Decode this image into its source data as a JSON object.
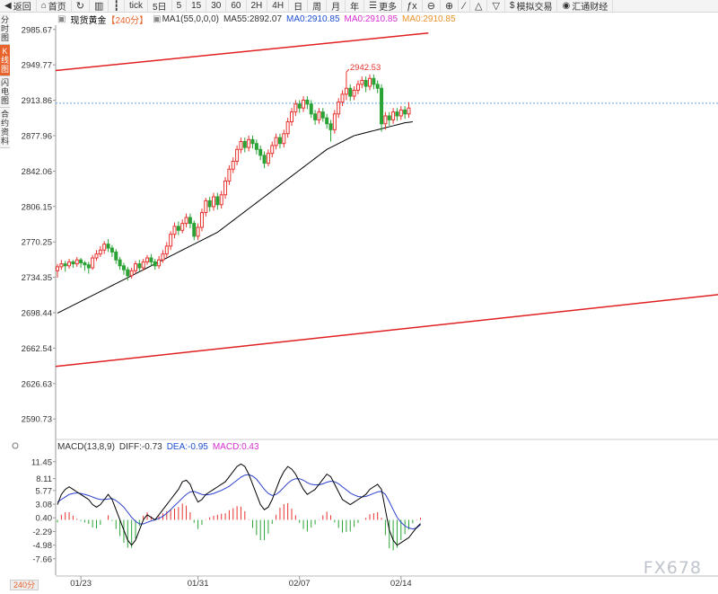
{
  "toolbar": {
    "items": [
      {
        "label": "返回",
        "icon": "back-arrow-icon"
      },
      {
        "label": "首页",
        "icon": "home-icon"
      },
      {
        "label": "",
        "icon": "refresh-icon"
      },
      {
        "label": "",
        "icon": "bar-chart-icon"
      },
      {
        "label": "",
        "icon": "candlestick-icon"
      },
      {
        "label": "tick",
        "icon": ""
      },
      {
        "label": "5日",
        "icon": ""
      },
      {
        "label": "5",
        "icon": ""
      },
      {
        "label": "15",
        "icon": ""
      },
      {
        "label": "30",
        "icon": ""
      },
      {
        "label": "60",
        "icon": ""
      },
      {
        "label": "2H",
        "icon": ""
      },
      {
        "label": "4H",
        "icon": ""
      },
      {
        "label": "日",
        "icon": ""
      },
      {
        "label": "周",
        "icon": ""
      },
      {
        "label": "月",
        "icon": ""
      },
      {
        "label": "年",
        "icon": ""
      },
      {
        "label": "更多",
        "icon": "menu-icon"
      },
      {
        "label": "",
        "icon": "fx-icon"
      },
      {
        "label": "",
        "icon": "zoom-out-icon"
      },
      {
        "label": "",
        "icon": "zoom-in-icon"
      },
      {
        "label": "",
        "icon": "draw-line-icon"
      },
      {
        "label": "",
        "icon": "triangle-up-icon"
      },
      {
        "label": "",
        "icon": "triangle-down-icon"
      },
      {
        "label": "模拟交易",
        "icon": "dollar-icon"
      },
      {
        "label": "汇通财经",
        "icon": "logo-icon"
      }
    ]
  },
  "sidetabs": [
    {
      "label": "分时图",
      "active": false
    },
    {
      "label": "K线图",
      "active": true
    },
    {
      "label": "闪电图",
      "active": false
    },
    {
      "label": "合约资料",
      "active": false
    }
  ],
  "legend": {
    "symbol": "现货黄金",
    "period": "【240分】",
    "ma1": "MA1(55,0,0,0)",
    "ma55": "MA55:2892.07",
    "ma0a": "MA0:2910.85",
    "ma0b": "MA0:2910.85",
    "ma0c": "MA0:2910.85"
  },
  "macd_legend": {
    "params": "MACD(13,8,9)",
    "diff": "DIFF:-0.73",
    "dea": "DEA:-0.95",
    "macd": "MACD:0.43"
  },
  "colors": {
    "up": "#e8322f",
    "down": "#2aa336",
    "ma55": "#000000",
    "trendline": "#e02020",
    "current_price_line": "#5fa8e8",
    "dea": "#2b3fcf",
    "diff": "#000000"
  },
  "period_badge": "240分",
  "watermark": "FX678",
  "chart_data": [
    {
      "type": "candlestick",
      "title": "现货黄金",
      "y_ticks": [
        2985.67,
        2949.77,
        2913.86,
        2877.96,
        2842.06,
        2806.15,
        2770.25,
        2734.35,
        2698.44,
        2662.54,
        2626.63,
        2590.73
      ],
      "ylim": [
        2580,
        2990
      ],
      "x_labels": [
        "01/23",
        "01/31",
        "02/07",
        "02/14"
      ],
      "x_label_index": [
        6,
        36,
        62,
        88
      ],
      "current_price": 2910.85,
      "max_annotation": {
        "index": 74,
        "value": 2942.53
      },
      "candles": [
        [
          2741,
          2745,
          2734,
          2748
        ],
        [
          2745,
          2748,
          2742,
          2752
        ],
        [
          2748,
          2746,
          2740,
          2751
        ],
        [
          2746,
          2750,
          2743,
          2753
        ],
        [
          2750,
          2748,
          2744,
          2752
        ],
        [
          2748,
          2752,
          2745,
          2755
        ],
        [
          2752,
          2749,
          2744,
          2754
        ],
        [
          2749,
          2747,
          2741,
          2751
        ],
        [
          2747,
          2744,
          2738,
          2750
        ],
        [
          2744,
          2754,
          2742,
          2757
        ],
        [
          2754,
          2758,
          2751,
          2762
        ],
        [
          2758,
          2762,
          2755,
          2766
        ],
        [
          2762,
          2768,
          2758,
          2771
        ],
        [
          2768,
          2764,
          2760,
          2773
        ],
        [
          2764,
          2760,
          2755,
          2767
        ],
        [
          2760,
          2752,
          2748,
          2763
        ],
        [
          2752,
          2746,
          2742,
          2755
        ],
        [
          2746,
          2742,
          2737,
          2749
        ],
        [
          2742,
          2736,
          2731,
          2745
        ],
        [
          2736,
          2741,
          2733,
          2744
        ],
        [
          2741,
          2748,
          2738,
          2751
        ],
        [
          2748,
          2744,
          2740,
          2752
        ],
        [
          2744,
          2750,
          2741,
          2753
        ],
        [
          2750,
          2754,
          2747,
          2757
        ],
        [
          2754,
          2750,
          2746,
          2758
        ],
        [
          2750,
          2746,
          2742,
          2753
        ],
        [
          2746,
          2752,
          2743,
          2756
        ],
        [
          2752,
          2758,
          2749,
          2762
        ],
        [
          2758,
          2766,
          2754,
          2770
        ],
        [
          2766,
          2778,
          2762,
          2781
        ],
        [
          2778,
          2786,
          2774,
          2790
        ],
        [
          2786,
          2782,
          2777,
          2791
        ],
        [
          2782,
          2789,
          2779,
          2793
        ],
        [
          2789,
          2795,
          2785,
          2799
        ],
        [
          2795,
          2789,
          2784,
          2799
        ],
        [
          2789,
          2776,
          2772,
          2792
        ],
        [
          2776,
          2785,
          2772,
          2789
        ],
        [
          2785,
          2800,
          2781,
          2804
        ],
        [
          2800,
          2812,
          2796,
          2815
        ],
        [
          2812,
          2806,
          2801,
          2816
        ],
        [
          2806,
          2816,
          2802,
          2820
        ],
        [
          2816,
          2808,
          2803,
          2820
        ],
        [
          2808,
          2818,
          2804,
          2822
        ],
        [
          2818,
          2832,
          2814,
          2836
        ],
        [
          2832,
          2844,
          2828,
          2848
        ],
        [
          2844,
          2852,
          2840,
          2856
        ],
        [
          2852,
          2864,
          2848,
          2868
        ],
        [
          2864,
          2872,
          2860,
          2876
        ],
        [
          2872,
          2866,
          2861,
          2876
        ],
        [
          2866,
          2874,
          2862,
          2878
        ],
        [
          2874,
          2870,
          2865,
          2878
        ],
        [
          2870,
          2864,
          2859,
          2874
        ],
        [
          2864,
          2858,
          2853,
          2868
        ],
        [
          2858,
          2850,
          2845,
          2862
        ],
        [
          2850,
          2860,
          2847,
          2864
        ],
        [
          2860,
          2868,
          2856,
          2872
        ],
        [
          2868,
          2876,
          2864,
          2880
        ],
        [
          2876,
          2870,
          2865,
          2880
        ],
        [
          2870,
          2880,
          2866,
          2884
        ],
        [
          2880,
          2892,
          2876,
          2896
        ],
        [
          2892,
          2902,
          2888,
          2906
        ],
        [
          2902,
          2910,
          2898,
          2914
        ],
        [
          2910,
          2906,
          2901,
          2914
        ],
        [
          2906,
          2914,
          2902,
          2918
        ],
        [
          2914,
          2910,
          2905,
          2918
        ],
        [
          2910,
          2900,
          2896,
          2914
        ],
        [
          2900,
          2894,
          2889,
          2904
        ],
        [
          2894,
          2902,
          2890,
          2906
        ],
        [
          2902,
          2896,
          2892,
          2906
        ],
        [
          2896,
          2890,
          2885,
          2900
        ],
        [
          2890,
          2884,
          2872,
          2894
        ],
        [
          2884,
          2900,
          2880,
          2904
        ],
        [
          2900,
          2912,
          2896,
          2916
        ],
        [
          2912,
          2920,
          2908,
          2924
        ],
        [
          2920,
          2926,
          2914,
          2942.53
        ],
        [
          2926,
          2918,
          2913,
          2930
        ],
        [
          2918,
          2924,
          2914,
          2928
        ],
        [
          2924,
          2930,
          2920,
          2934
        ],
        [
          2930,
          2934,
          2926,
          2938
        ],
        [
          2934,
          2928,
          2922,
          2938
        ],
        [
          2928,
          2936,
          2924,
          2940
        ],
        [
          2936,
          2930,
          2925,
          2940
        ],
        [
          2930,
          2926,
          2921,
          2934
        ],
        [
          2926,
          2890,
          2882,
          2930
        ],
        [
          2890,
          2898,
          2884,
          2902
        ],
        [
          2898,
          2894,
          2888,
          2902
        ],
        [
          2894,
          2902,
          2890,
          2906
        ],
        [
          2902,
          2898,
          2893,
          2906
        ],
        [
          2898,
          2904,
          2894,
          2908
        ],
        [
          2904,
          2900,
          2895,
          2908
        ],
        [
          2900,
          2906,
          2896,
          2912
        ]
      ],
      "ma55": [
        2698,
        2700,
        2702,
        2704,
        2706,
        2708,
        2710,
        2712,
        2714,
        2716,
        2718,
        2720,
        2722,
        2724,
        2726,
        2728,
        2730,
        2732,
        2734,
        2736,
        2738,
        2740,
        2742,
        2744,
        2746,
        2748,
        2750,
        2752,
        2754,
        2756,
        2758,
        2760,
        2762,
        2764,
        2766,
        2768,
        2770,
        2772,
        2774,
        2776,
        2778,
        2780,
        2783,
        2786,
        2789,
        2792,
        2795,
        2798,
        2801,
        2804,
        2807,
        2810,
        2813,
        2816,
        2819,
        2822,
        2825,
        2828,
        2831,
        2834,
        2837,
        2840,
        2843,
        2846,
        2849,
        2852,
        2855,
        2858,
        2861,
        2864,
        2866,
        2868,
        2870,
        2872,
        2874,
        2876,
        2878,
        2879,
        2880,
        2881,
        2882,
        2883,
        2884,
        2885,
        2886,
        2887,
        2888,
        2889,
        2890,
        2891,
        2891.5,
        2892.07
      ],
      "trendlines": [
        {
          "from": {
            "index": 0,
            "value": 2944
          },
          "to": {
            "index": 95,
            "value": 2982
          }
        },
        {
          "from": {
            "index": 0,
            "value": 2644
          },
          "to": {
            "index": 200,
            "value": 2730
          }
        }
      ]
    },
    {
      "type": "macd",
      "title": "MACD(13,8,9)",
      "y_ticks": [
        11.45,
        8.11,
        5.77,
        3.08,
        0.4,
        -2.29,
        -4.98,
        -7.66
      ],
      "ylim": [
        -10,
        13
      ],
      "diff": [
        3,
        5,
        6,
        6.5,
        6,
        5.5,
        5,
        4.5,
        4,
        3,
        2.5,
        3,
        4,
        5,
        4,
        2,
        0,
        -2,
        -4,
        -5,
        -4,
        -2,
        0,
        1,
        0.5,
        0,
        1,
        2,
        3,
        4,
        5,
        6,
        7.5,
        7.8,
        7,
        5,
        3.5,
        4,
        5,
        5.5,
        6,
        6.5,
        7,
        7.5,
        8.5,
        9.5,
        10.5,
        11,
        10.5,
        9,
        7,
        5,
        3,
        2,
        2.5,
        4,
        6,
        8,
        9.5,
        10.5,
        10,
        9,
        7.5,
        6,
        5,
        5.5,
        6,
        7,
        8,
        9,
        8.5,
        7,
        5.5,
        4,
        3.5,
        3,
        3.5,
        4,
        4.5,
        5,
        6,
        6.5,
        7,
        6,
        2,
        -2,
        -4,
        -5,
        -4.5,
        -4,
        -3.5,
        -2.5,
        -1.5,
        -0.73
      ],
      "dea": [
        3.5,
        4,
        4.5,
        5,
        5.2,
        5.3,
        5.2,
        5,
        4.8,
        4.5,
        4.2,
        4,
        4,
        4.1,
        4.2,
        3.8,
        3.2,
        2.5,
        1.5,
        0.5,
        -0.3,
        -0.8,
        -0.8,
        -0.5,
        -0.2,
        0,
        0.3,
        0.7,
        1.3,
        2,
        2.8,
        3.5,
        4.3,
        5,
        5.5,
        5.6,
        5.3,
        5,
        4.9,
        5,
        5.2,
        5.5,
        5.8,
        6.2,
        6.6,
        7.2,
        7.8,
        8.4,
        8.8,
        8.9,
        8.6,
        8,
        7,
        6,
        5.2,
        4.8,
        5,
        5.6,
        6.4,
        7.2,
        7.8,
        8.1,
        8.1,
        7.8,
        7.3,
        7,
        6.9,
        6.9,
        7.1,
        7.4,
        7.6,
        7.5,
        7.1,
        6.5,
        5.9,
        5.3,
        4.9,
        4.6,
        4.5,
        4.6,
        4.9,
        5.2,
        5.5,
        5.6,
        5,
        3.6,
        2,
        0.5,
        -0.5,
        -1.2,
        -1.6,
        -1.8,
        -1.6,
        -0.95
      ],
      "hist": [
        -0.5,
        1,
        1.5,
        1.5,
        0.8,
        0.2,
        -0.2,
        -0.5,
        -0.8,
        -1.5,
        -1.7,
        -1,
        0,
        0.9,
        -0.2,
        -1.8,
        -3.2,
        -4.5,
        -5.5,
        -5.5,
        -3.7,
        -1.2,
        0.8,
        1.5,
        0.7,
        0,
        0.7,
        1.3,
        1.7,
        2,
        2.2,
        2.5,
        3.2,
        2.8,
        1.5,
        -0.6,
        -1.8,
        -1,
        0.1,
        0.5,
        0.8,
        1,
        1.2,
        1.3,
        1.9,
        2.3,
        2.7,
        2.6,
        1.7,
        0.1,
        -1.6,
        -3,
        -4,
        -4,
        -2.7,
        -0.8,
        1,
        2.4,
        3.1,
        3.3,
        2.2,
        0.9,
        -0.6,
        -1.8,
        -2.3,
        -1.5,
        -0.9,
        0.1,
        0.9,
        1.6,
        0.9,
        -0.5,
        -1.6,
        -2.5,
        -2.4,
        -2.3,
        -1.4,
        -0.6,
        0,
        0.4,
        1.1,
        1.3,
        1.5,
        0.4,
        -3,
        -5.6,
        -6,
        -5.5,
        -4,
        -2.8,
        -1.9,
        -0.7,
        0.1,
        0.43
      ]
    }
  ]
}
